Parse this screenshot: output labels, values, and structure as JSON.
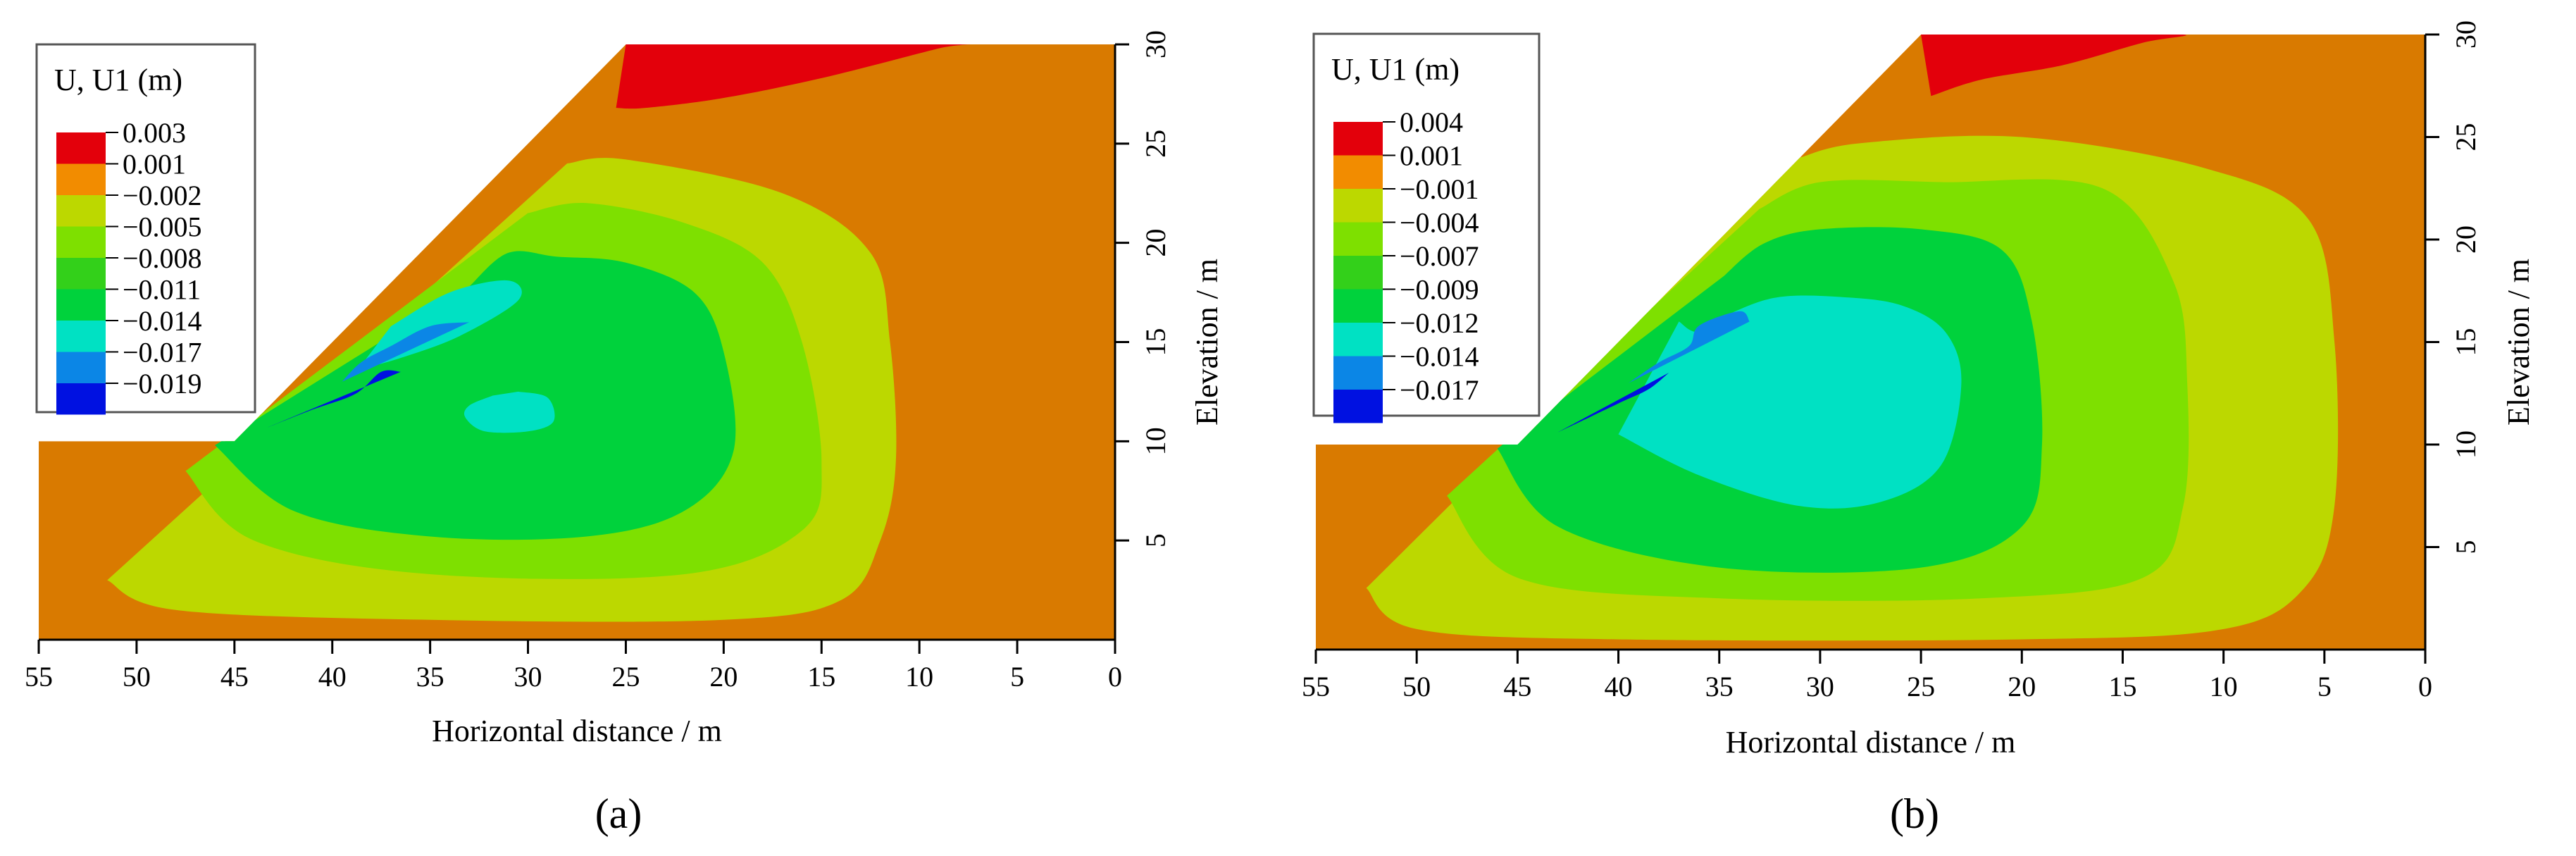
{
  "chart_data": [
    {
      "type": "contour",
      "panel_label": "(a)",
      "xlabel": "Horizontal distance / m",
      "ylabel": "Elevation / m",
      "xlim": [
        55,
        0
      ],
      "ylim": [
        0,
        30
      ],
      "x_ticks": [
        55,
        50,
        45,
        40,
        35,
        30,
        25,
        20,
        15,
        10,
        5,
        0
      ],
      "y_ticks": [
        5,
        10,
        15,
        20,
        25,
        30
      ],
      "legend_title": "U, U1 (m)",
      "legend_levels": [
        "0.003",
        "0.001",
        "−0.002",
        "−0.005",
        "−0.008",
        "−0.011",
        "−0.014",
        "−0.017",
        "−0.019"
      ],
      "legend_colors": [
        "#e3000b",
        "#f28c00",
        "#bcd800",
        "#7ee000",
        "#33d01a",
        "#00d23c",
        "#00e1c3",
        "#0b86e6",
        "#0011e1"
      ],
      "slope": {
        "toe": [
          45,
          10
        ],
        "crest": [
          25,
          30
        ]
      },
      "contours": [
        {
          "color": "#bcd800",
          "pts": [
            [
              51.5,
              3
            ],
            [
              48,
              1.5
            ],
            [
              35,
              1
            ],
            [
              20,
              1
            ],
            [
              14,
              2
            ],
            [
              12,
              5
            ],
            [
              11.2,
              9
            ],
            [
              11.5,
              15
            ],
            [
              12.5,
              19.5
            ],
            [
              17,
              22.5
            ],
            [
              25,
              24.2
            ],
            [
              28,
              24
            ]
          ]
        },
        {
          "color": "#7ee000",
          "pts": [
            [
              47.5,
              8.5
            ],
            [
              44,
              5
            ],
            [
              35,
              3.3
            ],
            [
              22,
              3.3
            ],
            [
              16,
              5.5
            ],
            [
              15,
              9
            ],
            [
              16,
              15
            ],
            [
              18,
              19
            ],
            [
              22,
              21
            ],
            [
              27,
              22
            ],
            [
              30,
              21.5
            ]
          ]
        },
        {
          "color": "#00d23c",
          "pts": [
            [
              46,
              9.8
            ],
            [
              42,
              6.5
            ],
            [
              35,
              5.2
            ],
            [
              27,
              5.2
            ],
            [
              22,
              6.5
            ],
            [
              19.5,
              9.5
            ],
            [
              20,
              14.5
            ],
            [
              21.5,
              17.5
            ],
            [
              25,
              19
            ],
            [
              28.5,
              19.3
            ],
            [
              31,
              19.5
            ],
            [
              33,
              17.8
            ]
          ]
        },
        {
          "color": "#00e1c3",
          "pts": [
            [
              31.8,
              12.3
            ],
            [
              33,
              11.8
            ],
            [
              33.2,
              11.2
            ],
            [
              32.2,
              10.5
            ],
            [
              30,
              10.5
            ],
            [
              28.7,
              11
            ],
            [
              29,
              12.2
            ],
            [
              30.5,
              12.5
            ]
          ]
        },
        {
          "color": "#00e1c3",
          "pts": [
            [
              37,
              15.8
            ],
            [
              34,
              17.5
            ],
            [
              31,
              18.1
            ],
            [
              30.5,
              17.1
            ],
            [
              33.5,
              15.3
            ],
            [
              36.5,
              14.2
            ],
            [
              38.7,
              13.6
            ]
          ]
        },
        {
          "color": "#0b86e6",
          "pts": [
            [
              39.5,
              13
            ],
            [
              38.5,
              14
            ],
            [
              37,
              14.8
            ],
            [
              35,
              15.8
            ],
            [
              33,
              16
            ]
          ]
        },
        {
          "color": "#0011e1",
          "pts": [
            [
              43.3,
              10.7
            ],
            [
              41,
              11.6
            ],
            [
              38.8,
              12.4
            ],
            [
              37.5,
              13.5
            ],
            [
              36.5,
              13.5
            ]
          ]
        }
      ],
      "red_cap": [
        [
          25,
          30
        ],
        [
          21,
          30
        ],
        [
          19,
          30
        ],
        [
          8,
          30
        ],
        [
          9,
          29.8
        ],
        [
          15,
          28.3
        ],
        [
          20,
          27.3
        ],
        [
          24,
          26.8
        ],
        [
          25.5,
          26.8
        ]
      ]
    },
    {
      "type": "contour",
      "panel_label": "(b)",
      "xlabel": "Horizontal distance / m",
      "ylabel": "Elevation / m",
      "xlim": [
        55,
        0
      ],
      "ylim": [
        0,
        30
      ],
      "x_ticks": [
        55,
        50,
        45,
        40,
        35,
        30,
        25,
        20,
        15,
        10,
        5,
        0
      ],
      "y_ticks": [
        5,
        10,
        15,
        20,
        25,
        30
      ],
      "legend_title": "U, U1 (m)",
      "legend_levels": [
        "0.004",
        "0.001",
        "−0.001",
        "−0.004",
        "−0.007",
        "−0.009",
        "−0.012",
        "−0.014",
        "−0.017"
      ],
      "legend_colors": [
        "#e3000b",
        "#f28c00",
        "#bcd800",
        "#7ee000",
        "#33d01a",
        "#00d23c",
        "#00e1c3",
        "#0b86e6",
        "#0011e1"
      ],
      "slope": {
        "toe": [
          45,
          10
        ],
        "crest": [
          25,
          30
        ]
      },
      "contours": [
        {
          "color": "#bcd800",
          "pts": [
            [
              52.5,
              3
            ],
            [
              50,
              1
            ],
            [
              40,
              0.5
            ],
            [
              20,
              0.5
            ],
            [
              10,
              1
            ],
            [
              6,
              3
            ],
            [
              4.5,
              7
            ],
            [
              4.5,
              15
            ],
            [
              5.8,
              21
            ],
            [
              11,
              23.5
            ],
            [
              20,
              25
            ],
            [
              28,
              24.7
            ],
            [
              31,
              24
            ]
          ]
        },
        {
          "color": "#7ee000",
          "pts": [
            [
              48.5,
              7.5
            ],
            [
              45,
              3.5
            ],
            [
              35,
              2.5
            ],
            [
              22,
              2.5
            ],
            [
              14,
              3.5
            ],
            [
              12,
              7
            ],
            [
              11.8,
              13
            ],
            [
              12.5,
              18
            ],
            [
              16,
              22.5
            ],
            [
              24,
              22.8
            ],
            [
              30,
              22.8
            ],
            [
              33,
              21.5
            ]
          ]
        },
        {
          "color": "#00d23c",
          "pts": [
            [
              46,
              9.8
            ],
            [
              43,
              6
            ],
            [
              35,
              4
            ],
            [
              25,
              4
            ],
            [
              20,
              6
            ],
            [
              19,
              10
            ],
            [
              19.5,
              16
            ],
            [
              21,
              19.5
            ],
            [
              25,
              20.5
            ],
            [
              30,
              20.5
            ],
            [
              32.8,
              19.8
            ],
            [
              34.8,
              18.2
            ]
          ]
        },
        {
          "color": "#00e1c3",
          "pts": [
            [
              40,
              10.5
            ],
            [
              36,
              8.5
            ],
            [
              31,
              7
            ],
            [
              27,
              7.2
            ],
            [
              24,
              9
            ],
            [
              23,
              13
            ],
            [
              23.8,
              15.5
            ],
            [
              26,
              16.8
            ],
            [
              29,
              17.2
            ],
            [
              32,
              17.2
            ],
            [
              34.2,
              16.5
            ],
            [
              36,
              15.5
            ],
            [
              37,
              16
            ]
          ]
        },
        {
          "color": "#0b86e6",
          "pts": [
            [
              39.5,
              13
            ],
            [
              38,
              14
            ],
            [
              36.5,
              14.8
            ],
            [
              36,
              15.8
            ],
            [
              34,
              16.5
            ],
            [
              33.5,
              16
            ]
          ]
        },
        {
          "color": "#0011e1",
          "pts": [
            [
              43,
              10.6
            ],
            [
              41.5,
              11.3
            ],
            [
              39.8,
              12.1
            ],
            [
              38.5,
              12.7
            ],
            [
              37.5,
              13.5
            ]
          ]
        }
      ],
      "red_cap": [
        [
          25,
          30
        ],
        [
          20,
          30
        ],
        [
          18,
          30
        ],
        [
          12,
          30
        ],
        [
          14,
          29.6
        ],
        [
          18,
          28.5
        ],
        [
          22,
          27.8
        ],
        [
          24.5,
          27
        ]
      ]
    }
  ]
}
